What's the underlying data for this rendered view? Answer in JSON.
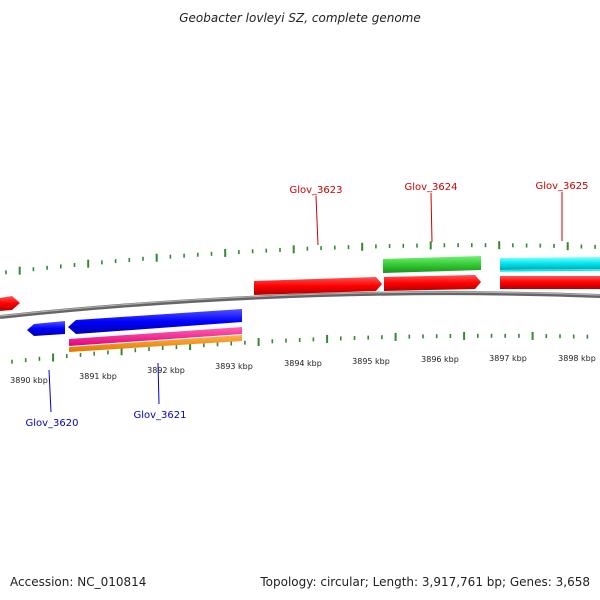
{
  "title": "Geobacter lovleyi SZ, complete genome",
  "footer": {
    "accession": "Accession: NC_010814",
    "topology": "Topology: circular; Length: 3,917,761 bp; Genes: 3,658"
  },
  "scale_labels": [
    "3890 kbp",
    "3891 kbp",
    "3892 kbp",
    "3893 kbp",
    "3894 kbp",
    "3895 kbp",
    "3896 kbp",
    "3897 kbp",
    "3898 kbp"
  ],
  "gene_labels": {
    "glov_3620": "Glov_3620",
    "glov_3621": "Glov_3621",
    "glov_3623": "Glov_3623",
    "glov_3624": "Glov_3624",
    "glov_3625": "Glov_3625"
  },
  "colors": {
    "backbone": "#888888",
    "tick": "#2e8b2e",
    "forward_gene": "#ff0000",
    "reverse_gene": "#0000ff",
    "magenta_feature": "#ff1493",
    "orange_feature": "#ff8c00",
    "green_feature": "#33cc33",
    "cyan_feature": "#00e5ee",
    "label_forward": "#cc0000",
    "label_reverse": "#0000cc"
  }
}
